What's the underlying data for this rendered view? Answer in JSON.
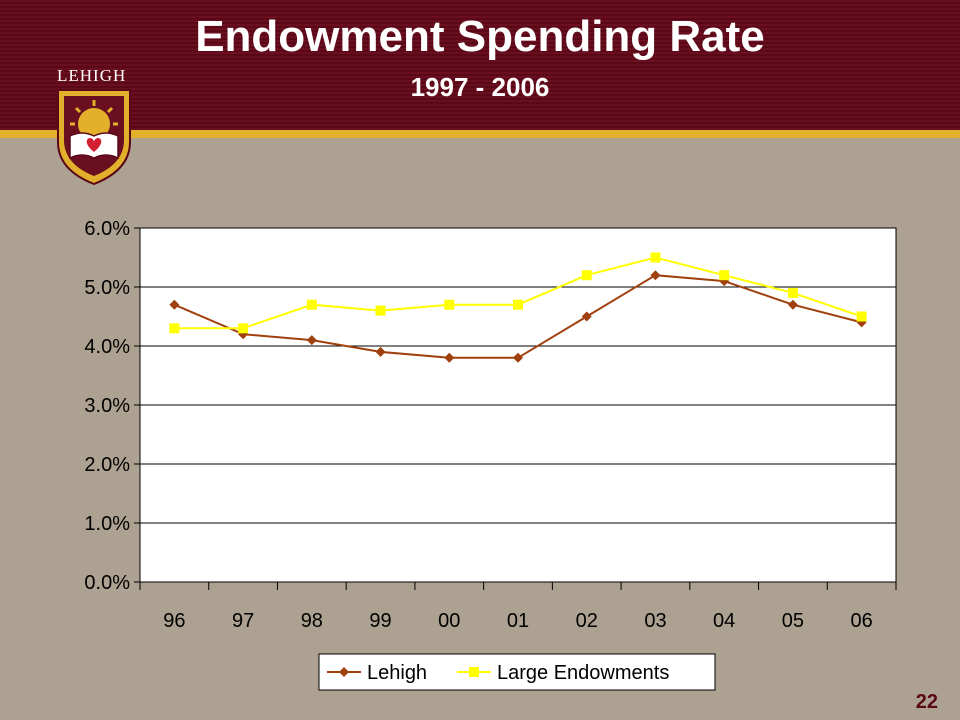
{
  "slide": {
    "title": "Endowment Spending Rate",
    "subtitle": "1997 - 2006",
    "logo_text": "LEHIGH",
    "page_number": "22"
  },
  "colors": {
    "header_bg": "#6a0f1f",
    "accent_stripe": "#e2b02b",
    "background": "#ada291",
    "plot_bg": "#ffffff",
    "lehigh": "#a0400f",
    "large_endowments": "#ffff00"
  },
  "chart_data": {
    "type": "line",
    "title": "",
    "xlabel": "",
    "ylabel": "",
    "categories": [
      "96",
      "97",
      "98",
      "99",
      "00",
      "01",
      "02",
      "03",
      "04",
      "05",
      "06"
    ],
    "ylim": [
      0,
      6
    ],
    "yticks": [
      "0.0%",
      "1.0%",
      "2.0%",
      "3.0%",
      "4.0%",
      "5.0%",
      "6.0%"
    ],
    "grid": true,
    "legend_position": "bottom",
    "series": [
      {
        "name": "Lehigh",
        "marker": "diamond",
        "color": "#a0400f",
        "values": [
          4.7,
          4.2,
          4.1,
          3.9,
          3.8,
          3.8,
          4.5,
          5.2,
          5.1,
          4.7,
          4.4
        ]
      },
      {
        "name": "Large Endowments",
        "marker": "square",
        "color": "#ffff00",
        "values": [
          4.3,
          4.3,
          4.7,
          4.6,
          4.7,
          4.7,
          5.2,
          5.5,
          5.2,
          4.9,
          4.5
        ]
      }
    ]
  }
}
